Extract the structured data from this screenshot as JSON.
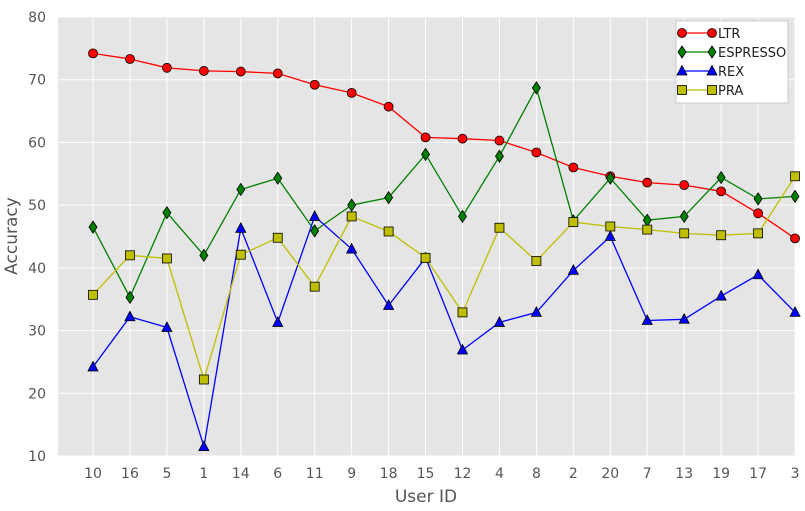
{
  "chart_data": {
    "type": "line",
    "title": "",
    "xlabel": "User ID",
    "ylabel": "Accuracy",
    "ylim": [
      10,
      80
    ],
    "yticks": [
      10,
      20,
      30,
      40,
      50,
      60,
      70,
      80
    ],
    "grid": true,
    "legend_position": "top-right",
    "categories": [
      "10",
      "16",
      "5",
      "1",
      "14",
      "6",
      "11",
      "9",
      "18",
      "15",
      "12",
      "4",
      "8",
      "2",
      "20",
      "7",
      "13",
      "19",
      "17",
      "3"
    ],
    "series": [
      {
        "name": "LTR",
        "color": "#ff0000",
        "marker": "circle",
        "values": [
          74.2,
          73.3,
          71.9,
          71.4,
          71.3,
          71.0,
          69.2,
          67.9,
          65.7,
          60.8,
          60.6,
          60.3,
          58.4,
          56.0,
          54.6,
          53.6,
          53.2,
          52.2,
          48.7,
          44.7
        ]
      },
      {
        "name": "ESPRESSO",
        "color": "#008000",
        "marker": "diamond",
        "values": [
          46.5,
          35.3,
          48.8,
          42.0,
          52.5,
          54.3,
          45.9,
          50.0,
          51.2,
          58.1,
          48.2,
          57.8,
          68.7,
          47.5,
          54.3,
          47.6,
          48.2,
          54.4,
          51.0,
          51.4
        ]
      },
      {
        "name": "REX",
        "color": "#0000ff",
        "marker": "triangle",
        "values": [
          24.2,
          32.2,
          30.5,
          11.5,
          46.3,
          31.3,
          48.2,
          43.0,
          34.0,
          41.6,
          26.9,
          31.3,
          32.9,
          39.6,
          45.0,
          31.6,
          31.8,
          35.5,
          38.9,
          32.9
        ]
      },
      {
        "name": "PRA",
        "color": "#bfbf00",
        "marker": "square",
        "values": [
          35.7,
          42.0,
          41.5,
          22.2,
          42.1,
          44.8,
          37.0,
          48.2,
          45.8,
          41.6,
          32.9,
          46.4,
          41.1,
          47.3,
          46.6,
          46.1,
          45.5,
          45.2,
          45.5,
          54.6
        ]
      }
    ]
  }
}
